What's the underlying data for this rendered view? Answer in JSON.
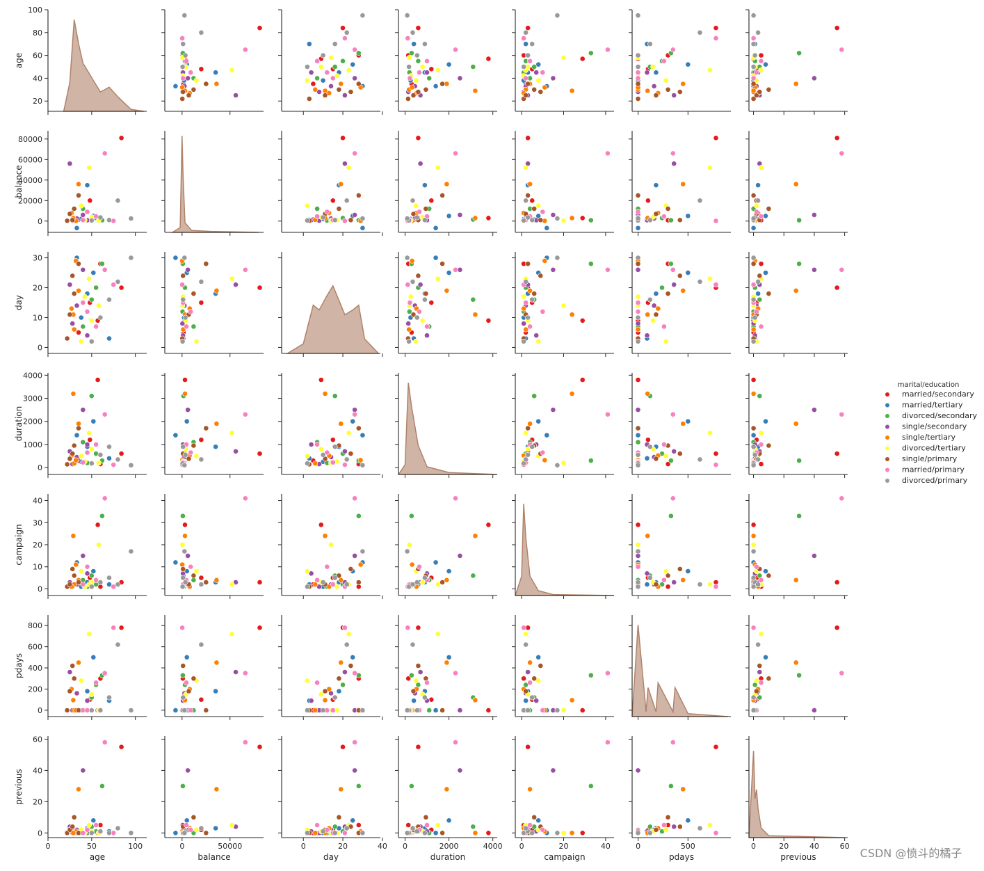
{
  "chart_data": {
    "type": "pairplot",
    "legend_title": "marital/education",
    "legend_position": "right",
    "diag_color": "#b0826a",
    "watermark": "CSDN @愤斗的橘子",
    "variables": [
      {
        "name": "age",
        "xlim": [
          0,
          113
        ],
        "ylim": [
          11,
          100
        ],
        "xticks": [
          0,
          50,
          100
        ],
        "yticks": [
          20,
          40,
          60,
          80,
          100
        ],
        "density_x": [
          18,
          25,
          30,
          35,
          40,
          50,
          60,
          70,
          80,
          95,
          110
        ],
        "density": [
          0,
          0.3,
          0.95,
          0.7,
          0.5,
          0.35,
          0.2,
          0.25,
          0.15,
          0.02,
          0
        ]
      },
      {
        "name": "balance",
        "xlim": [
          -18000,
          85000
        ],
        "ylim": [
          -11000,
          88000
        ],
        "xticks": [
          0,
          50000
        ],
        "yticks": [
          0,
          20000,
          40000,
          60000,
          80000
        ],
        "density_x": [
          -10000,
          -2000,
          0,
          1000,
          3000,
          10000,
          30000,
          80000
        ],
        "density": [
          0,
          0.05,
          1,
          0.6,
          0.1,
          0.02,
          0.01,
          0
        ]
      },
      {
        "name": "day",
        "xlim": [
          -11,
          39
        ],
        "ylim": [
          -2,
          32
        ],
        "xticks": [
          0,
          20,
          40
        ],
        "yticks": [
          0,
          10,
          20,
          30
        ],
        "density_x": [
          -8,
          0,
          5,
          8,
          12,
          15,
          18,
          21,
          25,
          28,
          31,
          38
        ],
        "density": [
          0,
          0.1,
          0.5,
          0.45,
          0.6,
          0.7,
          0.55,
          0.4,
          0.45,
          0.5,
          0.15,
          0
        ]
      },
      {
        "name": "duration",
        "xlim": [
          -300,
          4200
        ],
        "ylim": [
          -300,
          4100
        ],
        "xticks": [
          0,
          2000,
          4000
        ],
        "yticks": [
          0,
          1000,
          2000,
          3000,
          4000
        ],
        "density_x": [
          -300,
          0,
          150,
          300,
          600,
          1000,
          2000,
          4200
        ],
        "density": [
          0,
          0.1,
          0.95,
          0.7,
          0.3,
          0.08,
          0.02,
          0
        ]
      },
      {
        "name": "campaign",
        "xlim": [
          -3,
          44
        ],
        "ylim": [
          -3,
          43
        ],
        "xticks": [
          0,
          20,
          40
        ],
        "yticks": [
          0,
          10,
          20,
          30,
          40
        ],
        "density_x": [
          -3,
          0,
          1,
          2,
          4,
          8,
          15,
          44
        ],
        "density": [
          0,
          0.2,
          0.95,
          0.6,
          0.2,
          0.05,
          0.01,
          0
        ]
      },
      {
        "name": "pdays",
        "xlim": [
          -60,
          930
        ],
        "ylim": [
          -60,
          900
        ],
        "xticks": [
          0,
          500
        ],
        "yticks": [
          0,
          200,
          400,
          600,
          800
        ],
        "density_x": [
          -60,
          -1,
          80,
          100,
          180,
          200,
          350,
          370,
          500,
          900
        ],
        "density": [
          0,
          0.95,
          0.05,
          0.3,
          0.05,
          0.35,
          0.05,
          0.3,
          0.03,
          0
        ]
      },
      {
        "name": "previous",
        "xlim": [
          -3,
          62
        ],
        "ylim": [
          -3,
          62
        ],
        "xticks": [
          0,
          20,
          40,
          60
        ],
        "yticks": [
          0,
          20,
          40,
          60
        ],
        "density_x": [
          -3,
          0,
          1,
          2,
          3,
          5,
          10,
          60
        ],
        "density": [
          0,
          0.9,
          0.4,
          0.5,
          0.3,
          0.1,
          0.02,
          0
        ]
      }
    ],
    "series": [
      {
        "name": "married/secondary",
        "color": "#e41a1c",
        "data": [
          [
            35,
            48,
            60,
            84,
            57
          ],
          [
            1500,
            20000,
            800,
            81000,
            3000
          ],
          [
            5,
            15,
            28,
            20,
            9
          ],
          [
            300,
            1200,
            150,
            600,
            3800
          ],
          [
            2,
            5,
            1,
            3,
            29
          ],
          [
            -1,
            100,
            300,
            780,
            -1
          ],
          [
            0,
            2,
            5,
            55,
            0
          ]
        ]
      },
      {
        "name": "married/tertiary",
        "color": "#377eb8",
        "data": [
          [
            38,
            45,
            52,
            70,
            33
          ],
          [
            2000,
            35000,
            5000,
            1200,
            -6800
          ],
          [
            10,
            18,
            25,
            3,
            30
          ],
          [
            250,
            900,
            2000,
            400,
            1400
          ],
          [
            1,
            3,
            8,
            2,
            12
          ],
          [
            -1,
            180,
            500,
            90,
            -1
          ],
          [
            0,
            3,
            8,
            1,
            0
          ]
        ]
      },
      {
        "name": "divorced/secondary",
        "color": "#4daf4a",
        "data": [
          [
            45,
            55,
            40,
            62,
            50
          ],
          [
            500,
            3000,
            12000,
            800,
            1500
          ],
          [
            12,
            20,
            7,
            28,
            16
          ],
          [
            200,
            600,
            1100,
            300,
            3100
          ],
          [
            1,
            2,
            4,
            33,
            6
          ],
          [
            -1,
            240,
            -1,
            330,
            120
          ],
          [
            0,
            1,
            0,
            30,
            4
          ]
        ]
      },
      {
        "name": "single/secondary",
        "color": "#984ea3",
        "data": [
          [
            28,
            33,
            25,
            40,
            45
          ],
          [
            400,
            2500,
            56000,
            6000,
            900
          ],
          [
            8,
            14,
            21,
            26,
            4
          ],
          [
            150,
            450,
            700,
            2500,
            1000
          ],
          [
            1,
            2,
            3,
            15,
            7
          ],
          [
            -1,
            160,
            360,
            -1,
            90
          ],
          [
            0,
            2,
            4,
            40,
            1
          ]
        ]
      },
      {
        "name": "single/tertiary",
        "color": "#ff7f00",
        "data": [
          [
            30,
            27,
            35,
            32,
            29
          ],
          [
            1200,
            8000,
            36000,
            200,
            3000
          ],
          [
            6,
            13,
            19,
            29,
            11
          ],
          [
            180,
            520,
            1900,
            320,
            3200
          ],
          [
            2,
            1,
            4,
            11,
            24
          ],
          [
            -1,
            200,
            450,
            -1,
            95
          ],
          [
            0,
            3,
            28,
            1,
            0
          ]
        ]
      },
      {
        "name": "divorced/tertiary",
        "color": "#ffff33",
        "data": [
          [
            42,
            50,
            47,
            38,
            58
          ],
          [
            900,
            4000,
            52000,
            15000,
            500
          ],
          [
            17,
            9,
            23,
            2,
            14
          ],
          [
            260,
            800,
            1500,
            500,
            200
          ],
          [
            1,
            3,
            2,
            8,
            20
          ],
          [
            -1,
            150,
            720,
            280,
            -1
          ],
          [
            0,
            1,
            5,
            2,
            0
          ]
        ]
      },
      {
        "name": "single/primary",
        "color": "#a65628",
        "data": [
          [
            22,
            25,
            30,
            28,
            35
          ],
          [
            300,
            7000,
            12000,
            1000,
            25000
          ],
          [
            3,
            11,
            18,
            24,
            28
          ],
          [
            140,
            380,
            950,
            600,
            1700
          ],
          [
            1,
            2,
            6,
            9,
            3
          ],
          [
            -1,
            180,
            300,
            420,
            -1
          ],
          [
            0,
            2,
            10,
            4,
            0
          ]
        ]
      },
      {
        "name": "married/primary",
        "color": "#f781bf",
        "data": [
          [
            40,
            55,
            65,
            45,
            75
          ],
          [
            1000,
            4500,
            66000,
            9000,
            200
          ],
          [
            15,
            7,
            26,
            12,
            21
          ],
          [
            220,
            1000,
            2300,
            650,
            120
          ],
          [
            2,
            4,
            41,
            10,
            1
          ],
          [
            -1,
            260,
            350,
            -1,
            780
          ],
          [
            0,
            5,
            58,
            2,
            0
          ]
        ]
      },
      {
        "name": "divorced/primary",
        "color": "#999999",
        "data": [
          [
            50,
            60,
            70,
            80,
            95
          ],
          [
            600,
            3500,
            1000,
            20000,
            2500
          ],
          [
            2,
            10,
            16,
            22,
            30
          ],
          [
            180,
            550,
            900,
            350,
            100
          ],
          [
            1,
            3,
            5,
            2,
            17
          ],
          [
            -1,
            -1,
            120,
            620,
            -1
          ],
          [
            0,
            1,
            0,
            3,
            0
          ]
        ]
      }
    ]
  }
}
